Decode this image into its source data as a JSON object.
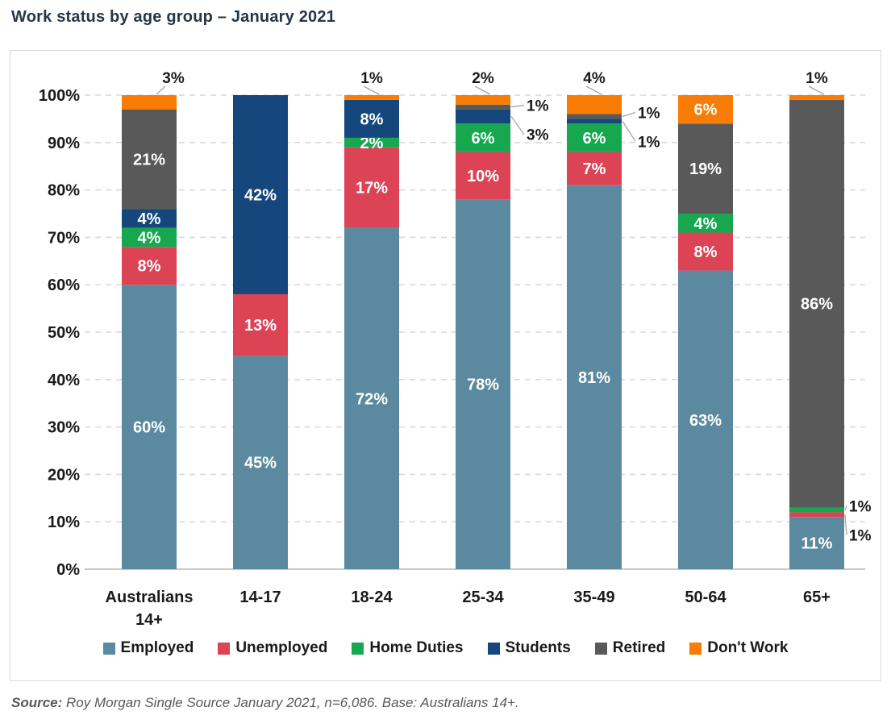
{
  "page": {
    "title": "Work status by age group – January 2021",
    "source_label": "Source:",
    "source_text": " Roy Morgan Single Source January 2021, n=6,086. Base: Australians 14+."
  },
  "chart_data": {
    "type": "bar",
    "stacked": true,
    "units": "percent",
    "title": "Work status by age group – January 2021",
    "categories": [
      "Australians 14+",
      "14-17",
      "18-24",
      "25-34",
      "35-49",
      "50-64",
      "65+"
    ],
    "series": [
      {
        "name": "Employed",
        "color": "#5b8aa0",
        "values": [
          60,
          45,
          72,
          78,
          81,
          63,
          11
        ]
      },
      {
        "name": "Unemployed",
        "color": "#dc4456",
        "values": [
          8,
          13,
          17,
          10,
          7,
          8,
          1
        ]
      },
      {
        "name": "Home Duties",
        "color": "#16a74f",
        "values": [
          4,
          0,
          2,
          6,
          6,
          4,
          1
        ]
      },
      {
        "name": "Students",
        "color": "#15477d",
        "values": [
          4,
          42,
          8,
          3,
          1,
          0,
          0
        ]
      },
      {
        "name": "Retired",
        "color": "#595959",
        "values": [
          21,
          0,
          0,
          1,
          1,
          19,
          86
        ]
      },
      {
        "name": "Don't Work",
        "color": "#f87c05",
        "values": [
          3,
          0,
          1,
          2,
          4,
          6,
          1
        ]
      }
    ],
    "y_ticks": [
      "0%",
      "10%",
      "20%",
      "30%",
      "40%",
      "50%",
      "60%",
      "70%",
      "80%",
      "90%",
      "100%"
    ],
    "ylim": [
      0,
      100
    ],
    "grid": "horizontal-dashed",
    "legend_position": "bottom",
    "callouts": [
      {
        "category": "Australians 14+",
        "series": "Don't Work",
        "label": "3%",
        "placement": "above",
        "dx": 30
      },
      {
        "category": "18-24",
        "series": "Don't Work",
        "label": "1%",
        "placement": "above"
      },
      {
        "category": "25-34",
        "series": "Don't Work",
        "label": "2%",
        "placement": "above"
      },
      {
        "category": "25-34",
        "series": "Retired",
        "label": "1%",
        "placement": "right"
      },
      {
        "category": "25-34",
        "series": "Students",
        "label": "3%",
        "placement": "right"
      },
      {
        "category": "35-49",
        "series": "Don't Work",
        "label": "4%",
        "placement": "above"
      },
      {
        "category": "35-49",
        "series": "Retired",
        "label": "1%",
        "placement": "right"
      },
      {
        "category": "35-49",
        "series": "Students",
        "label": "1%",
        "placement": "right"
      },
      {
        "category": "65+",
        "series": "Don't Work",
        "label": "1%",
        "placement": "above"
      },
      {
        "category": "65+",
        "series": "Home Duties",
        "label": "1%",
        "placement": "right"
      },
      {
        "category": "65+",
        "series": "Unemployed",
        "label": "1%",
        "placement": "right"
      }
    ],
    "colors": {
      "gridline": "#d9d9d9",
      "axis_line": "#c9c9c9",
      "leader_line": "#a6a6a6",
      "tick_text": "#1a1a1a",
      "inside_label": "#ffffff",
      "callout_text": "#1a1a1a"
    }
  }
}
